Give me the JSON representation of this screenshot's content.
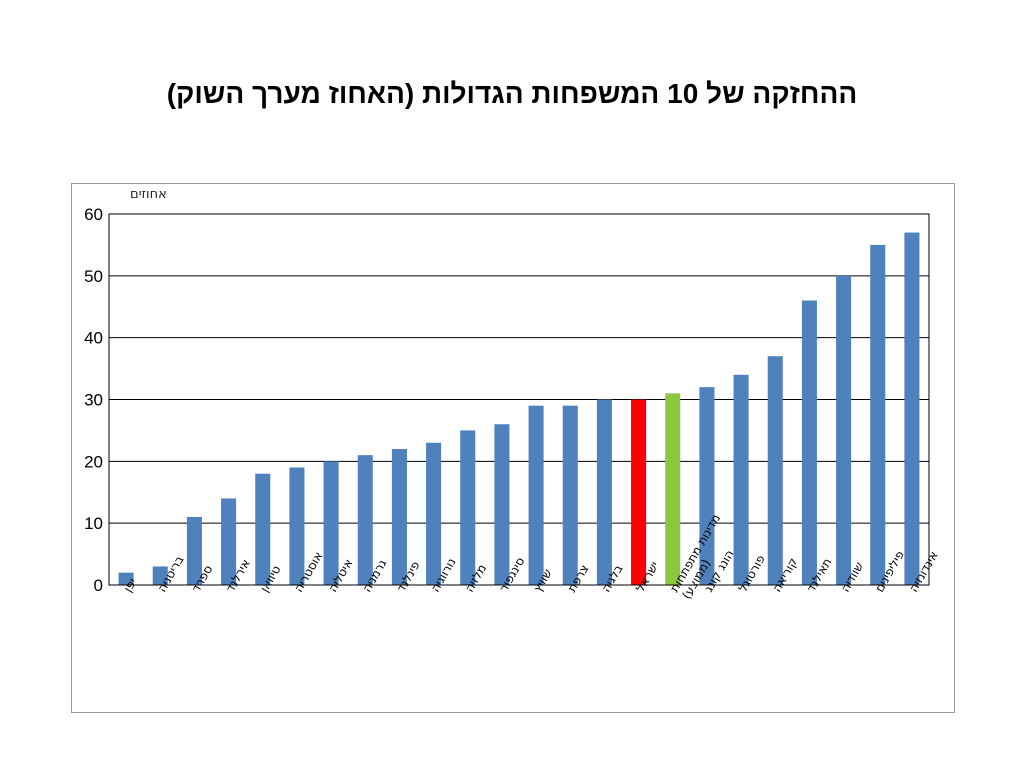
{
  "slide": {
    "title": "ההחזקה של 10 המשפחות הגדולות (האחוז מערך השוק)"
  },
  "chart_data": {
    "type": "bar",
    "ylabel": "אחוזים",
    "ylim": [
      0,
      60
    ],
    "yticks": [
      0,
      10,
      20,
      30,
      40,
      50,
      60
    ],
    "grid": true,
    "categories": [
      "יפן",
      "בריטניה",
      "ספרד",
      "אירלנד",
      "טיוואן",
      "אוסטריה",
      "איטליה",
      "גרמניה",
      "פינלנד",
      "נורווגיה",
      "מלזיה",
      "סינגפור",
      "שוויץ",
      "צרפת",
      "בלגיה",
      "ישראל",
      "מדינות מתפתחות (ממוצע)",
      "הונג קונג",
      "פורטוגל",
      "קוריאה",
      "תאילנד",
      "שוודיה",
      "פיליפינים",
      "אינדונזיה"
    ],
    "values": [
      2,
      3,
      11,
      14,
      18,
      19,
      20,
      21,
      22,
      23,
      25,
      26,
      29,
      29,
      30,
      30,
      31,
      32,
      34,
      37,
      46,
      50,
      55,
      57
    ],
    "colors": {
      "default": "#4f81bd",
      "highlights": {
        "ישראל": "#ff0000",
        "מדינות מתפתחות (ממוצע)": "#8dc63f"
      }
    }
  }
}
